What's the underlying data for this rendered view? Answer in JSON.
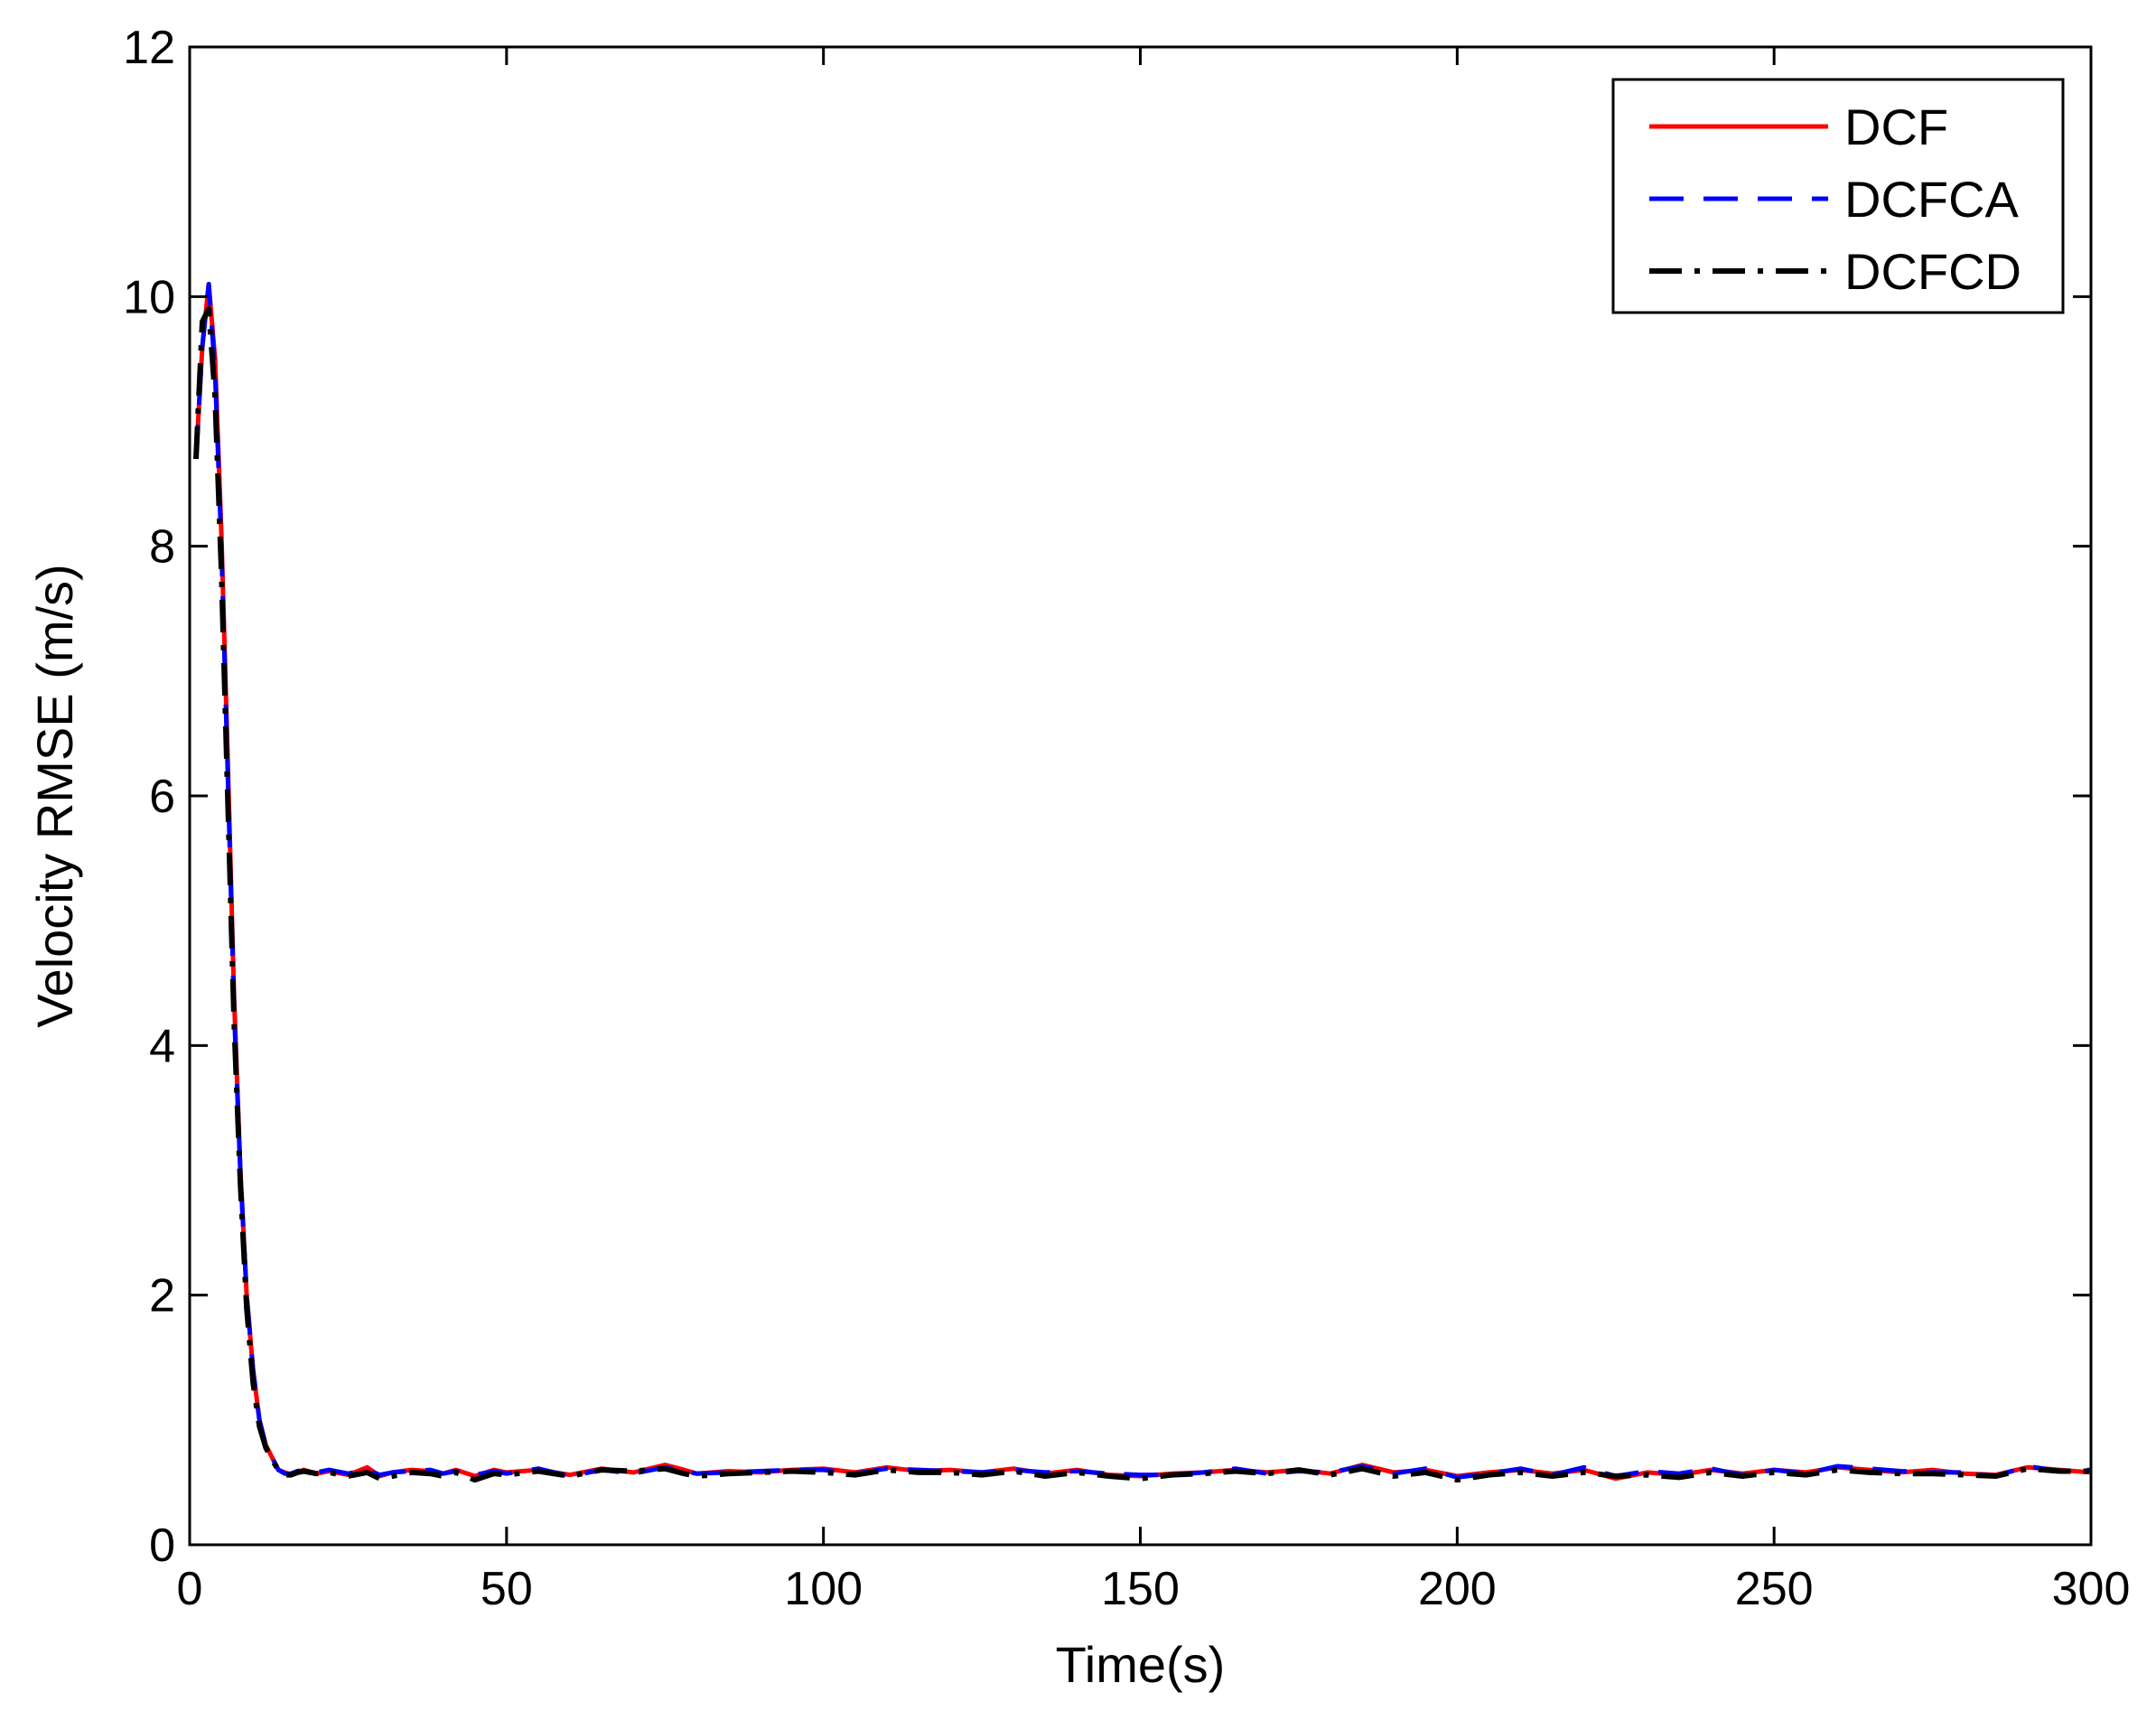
{
  "chart_data": {
    "type": "line",
    "title": "",
    "xlabel": "Time(s)",
    "ylabel": "Velocity RMSE (m/s)",
    "xlim": [
      0,
      300
    ],
    "ylim": [
      0,
      12
    ],
    "xticks": [
      "0",
      "50",
      "100",
      "150",
      "200",
      "250",
      "300"
    ],
    "yticks": [
      "0",
      "2",
      "4",
      "6",
      "8",
      "10",
      "12"
    ],
    "grid": false,
    "legend_position": "top-right",
    "x": [
      1,
      2,
      3,
      4,
      5,
      6,
      7,
      8,
      9,
      10,
      11,
      12,
      13,
      14,
      15,
      16,
      17,
      18,
      20,
      22,
      25,
      28,
      30,
      32,
      35,
      38,
      40,
      42,
      45,
      48,
      50,
      55,
      60,
      65,
      70,
      75,
      78,
      80,
      85,
      90,
      95,
      100,
      105,
      110,
      115,
      120,
      125,
      130,
      135,
      140,
      145,
      150,
      155,
      160,
      165,
      170,
      175,
      180,
      185,
      190,
      195,
      200,
      205,
      210,
      215,
      220,
      225,
      230,
      235,
      240,
      245,
      250,
      255,
      260,
      265,
      270,
      275,
      280,
      285,
      290,
      295,
      300
    ],
    "series": [
      {
        "name": "DCF",
        "color": "#ff0000",
        "style": "solid",
        "values": [
          8.7,
          9.6,
          10.1,
          9.5,
          8.1,
          6.3,
          4.4,
          3.0,
          2.0,
          1.4,
          1.0,
          0.8,
          0.7,
          0.6,
          0.58,
          0.56,
          0.58,
          0.6,
          0.57,
          0.59,
          0.56,
          0.62,
          0.55,
          0.58,
          0.6,
          0.59,
          0.57,
          0.6,
          0.55,
          0.6,
          0.58,
          0.6,
          0.56,
          0.61,
          0.58,
          0.64,
          0.6,
          0.57,
          0.59,
          0.58,
          0.6,
          0.61,
          0.58,
          0.62,
          0.59,
          0.6,
          0.58,
          0.61,
          0.57,
          0.6,
          0.56,
          0.55,
          0.57,
          0.58,
          0.6,
          0.58,
          0.6,
          0.57,
          0.64,
          0.58,
          0.6,
          0.55,
          0.58,
          0.6,
          0.57,
          0.6,
          0.53,
          0.58,
          0.56,
          0.6,
          0.57,
          0.6,
          0.58,
          0.62,
          0.6,
          0.58,
          0.6,
          0.57,
          0.56,
          0.62,
          0.6,
          0.58
        ]
      },
      {
        "name": "DCFCA",
        "color": "#0000ff",
        "style": "dashed",
        "values": [
          8.7,
          9.6,
          10.1,
          9.4,
          8.0,
          6.2,
          4.3,
          3.0,
          2.0,
          1.4,
          1.0,
          0.8,
          0.7,
          0.6,
          0.57,
          0.57,
          0.59,
          0.6,
          0.58,
          0.6,
          0.57,
          0.6,
          0.56,
          0.58,
          0.59,
          0.6,
          0.57,
          0.59,
          0.56,
          0.59,
          0.57,
          0.61,
          0.55,
          0.6,
          0.57,
          0.62,
          0.59,
          0.57,
          0.58,
          0.59,
          0.6,
          0.6,
          0.57,
          0.61,
          0.6,
          0.59,
          0.58,
          0.6,
          0.58,
          0.59,
          0.57,
          0.56,
          0.56,
          0.58,
          0.61,
          0.57,
          0.59,
          0.58,
          0.63,
          0.57,
          0.61,
          0.54,
          0.57,
          0.61,
          0.56,
          0.62,
          0.55,
          0.59,
          0.57,
          0.61,
          0.56,
          0.6,
          0.57,
          0.63,
          0.61,
          0.59,
          0.58,
          0.58,
          0.55,
          0.63,
          0.59,
          0.6
        ]
      },
      {
        "name": "DCFCD",
        "color": "#000000",
        "style": "dashdot",
        "values": [
          8.7,
          9.8,
          9.9,
          9.2,
          7.8,
          6.0,
          4.2,
          2.9,
          1.9,
          1.3,
          0.95,
          0.78,
          0.68,
          0.6,
          0.56,
          0.56,
          0.58,
          0.59,
          0.57,
          0.58,
          0.55,
          0.58,
          0.53,
          0.55,
          0.58,
          0.57,
          0.55,
          0.58,
          0.52,
          0.57,
          0.56,
          0.59,
          0.55,
          0.6,
          0.59,
          0.61,
          0.57,
          0.55,
          0.57,
          0.58,
          0.59,
          0.58,
          0.56,
          0.6,
          0.58,
          0.58,
          0.56,
          0.59,
          0.55,
          0.58,
          0.55,
          0.53,
          0.56,
          0.57,
          0.59,
          0.57,
          0.6,
          0.56,
          0.61,
          0.55,
          0.58,
          0.52,
          0.56,
          0.58,
          0.55,
          0.58,
          0.55,
          0.56,
          0.54,
          0.58,
          0.55,
          0.58,
          0.56,
          0.6,
          0.58,
          0.57,
          0.57,
          0.56,
          0.55,
          0.61,
          0.59,
          0.59
        ]
      }
    ]
  }
}
